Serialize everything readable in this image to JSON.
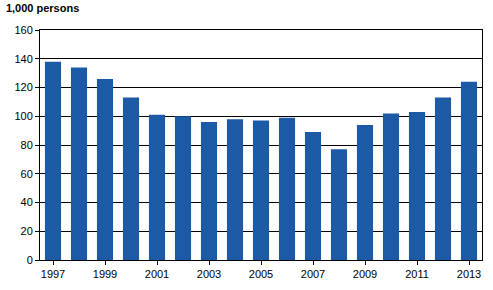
{
  "chart_data": {
    "type": "bar",
    "title": "1,000 persons",
    "categories": [
      "1997",
      null,
      "1999",
      null,
      "2001",
      null,
      "2003",
      null,
      "2005",
      null,
      "2007",
      null,
      "2009",
      null,
      "2011",
      null,
      "2013"
    ],
    "values": [
      138,
      134,
      126,
      113,
      101,
      100,
      96,
      98,
      97,
      99,
      89,
      77,
      94,
      102,
      103,
      113,
      124
    ],
    "color": "#1c5aa6",
    "ylim": [
      0,
      160
    ],
    "yticks": [
      0,
      20,
      40,
      60,
      80,
      100,
      120,
      140,
      160
    ],
    "grid": true
  }
}
